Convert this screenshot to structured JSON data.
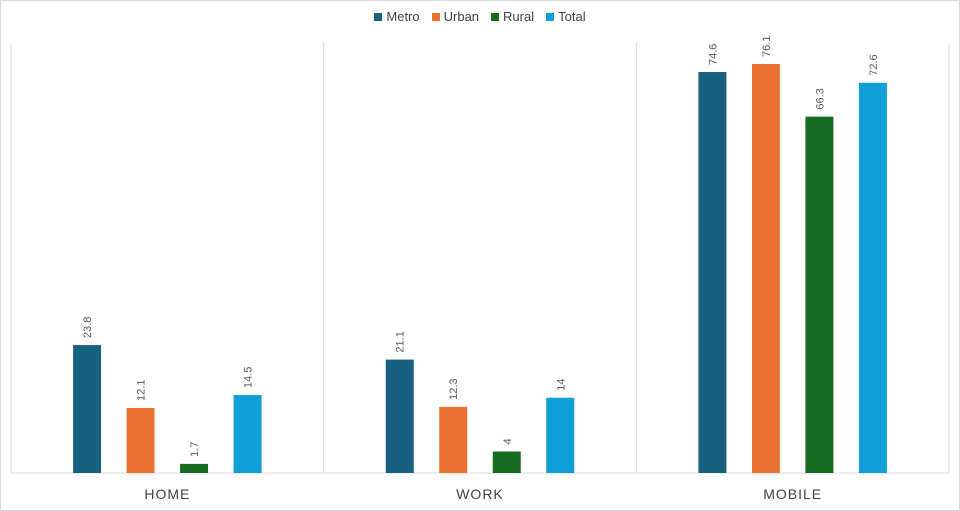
{
  "chart_data": {
    "type": "bar",
    "categories": [
      "HOME",
      "WORK",
      "MOBILE"
    ],
    "series": [
      {
        "name": "Metro",
        "color": "#17607f",
        "values": [
          23.8,
          21.1,
          74.6
        ]
      },
      {
        "name": "Urban",
        "color": "#e97132",
        "values": [
          12.1,
          12.3,
          76.1
        ]
      },
      {
        "name": "Rural",
        "color": "#196b24",
        "values": [
          1.7,
          4,
          66.3
        ]
      },
      {
        "name": "Total",
        "color": "#0f9ed5",
        "values": [
          14.5,
          14,
          72.6
        ]
      }
    ],
    "value_labels": [
      [
        "23.8",
        "21.1",
        "74.6"
      ],
      [
        "12.1",
        "12.3",
        "76.1"
      ],
      [
        "1.7",
        "4",
        "66.3"
      ],
      [
        "14.5",
        "14",
        "72.6"
      ]
    ],
    "title": "",
    "xlabel": "",
    "ylabel": "",
    "ylim": [
      0,
      80
    ],
    "grid": false,
    "legend_position": "top"
  }
}
